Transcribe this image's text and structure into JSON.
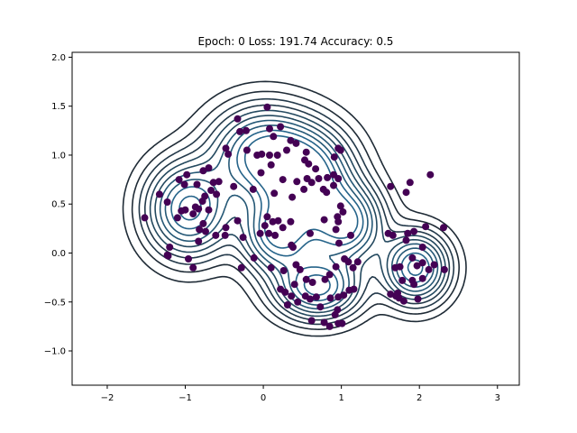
{
  "chart_data": {
    "type": "scatter",
    "title": "Epoch: 0 Loss: 191.74 Accuracy:  0.5",
    "xlabel": "",
    "ylabel": "",
    "xlim": [
      -2.45,
      3.28
    ],
    "ylim": [
      -1.35,
      2.05
    ],
    "grid": false,
    "xticks": [
      -2,
      -1,
      0,
      1,
      2,
      3
    ],
    "xtick_labels": [
      "−2",
      "−1",
      "0",
      "1",
      "2",
      "3"
    ],
    "yticks": [
      -1.0,
      -0.5,
      0.0,
      0.5,
      1.0,
      1.5,
      2.0
    ],
    "ytick_labels": [
      "−1.0",
      "−0.5",
      "0.0",
      "0.5",
      "1.0",
      "1.5",
      "2.0"
    ],
    "point_color": "#440154",
    "contour_colors": [
      "#1f2b36",
      "#23394a",
      "#24495f",
      "#255876",
      "#26648a"
    ],
    "clusters": [
      {
        "cx": 0.0,
        "cy": 1.0,
        "sx": 0.42,
        "sy": 0.3
      },
      {
        "cx": 0.58,
        "cy": 0.78,
        "sx": 0.36,
        "sy": 0.3
      },
      {
        "cx": -0.95,
        "cy": 0.45,
        "sx": 0.34,
        "sy": 0.3
      },
      {
        "cx": 0.2,
        "cy": 0.2,
        "sx": 0.3,
        "sy": 0.25
      },
      {
        "cx": 0.7,
        "cy": -0.35,
        "sx": 0.34,
        "sy": 0.2
      },
      {
        "cx": 1.95,
        "cy": -0.15,
        "sx": 0.26,
        "sy": 0.22
      },
      {
        "cx": 1.05,
        "cy": 0.3,
        "sx": 0.3,
        "sy": 0.25
      }
    ],
    "points": [
      [
        0.05,
        1.49
      ],
      [
        -0.33,
        1.37
      ],
      [
        0.08,
        1.27
      ],
      [
        0.22,
        1.29
      ],
      [
        -0.22,
        1.25
      ],
      [
        -0.3,
        1.24
      ],
      [
        0.13,
        1.19
      ],
      [
        0.35,
        1.15
      ],
      [
        0.42,
        1.12
      ],
      [
        -0.48,
        1.07
      ],
      [
        -0.45,
        1.01
      ],
      [
        -0.21,
        1.05
      ],
      [
        -0.08,
        1.0
      ],
      [
        -0.02,
        1.01
      ],
      [
        0.08,
        1.0
      ],
      [
        0.18,
        1.0
      ],
      [
        0.3,
        1.05
      ],
      [
        0.55,
        1.03
      ],
      [
        0.96,
        1.07
      ],
      [
        0.99,
        1.05
      ],
      [
        0.91,
        0.98
      ],
      [
        0.53,
        0.95
      ],
      [
        0.58,
        0.91
      ],
      [
        0.67,
        0.86
      ],
      [
        0.1,
        0.9
      ],
      [
        -0.03,
        0.82
      ],
      [
        0.25,
        0.75
      ],
      [
        0.43,
        0.73
      ],
      [
        0.56,
        0.76
      ],
      [
        0.71,
        0.76
      ],
      [
        0.82,
        0.77
      ],
      [
        0.9,
        0.8
      ],
      [
        0.96,
        0.76
      ],
      [
        0.9,
        0.69
      ],
      [
        0.81,
        0.62
      ],
      [
        0.77,
        0.65
      ],
      [
        0.52,
        0.65
      ],
      [
        0.62,
        0.72
      ],
      [
        0.37,
        0.57
      ],
      [
        0.14,
        0.61
      ],
      [
        -0.13,
        0.65
      ],
      [
        -0.38,
        0.68
      ],
      [
        -0.57,
        0.73
      ],
      [
        -0.64,
        0.72
      ],
      [
        -0.77,
        0.84
      ],
      [
        -0.7,
        0.87
      ],
      [
        -0.98,
        0.8
      ],
      [
        -1.08,
        0.75
      ],
      [
        -1.01,
        0.7
      ],
      [
        -0.85,
        0.7
      ],
      [
        -0.67,
        0.64
      ],
      [
        -0.6,
        0.6
      ],
      [
        -0.75,
        0.58
      ],
      [
        -0.78,
        0.53
      ],
      [
        -1.33,
        0.6
      ],
      [
        -1.23,
        0.52
      ],
      [
        -0.87,
        0.47
      ],
      [
        -0.83,
        0.45
      ],
      [
        -0.7,
        0.44
      ],
      [
        -0.9,
        0.4
      ],
      [
        -1.0,
        0.44
      ],
      [
        -1.05,
        0.43
      ],
      [
        -1.1,
        0.36
      ],
      [
        -1.52,
        0.36
      ],
      [
        -0.77,
        0.3
      ],
      [
        -0.74,
        0.22
      ],
      [
        -0.82,
        0.24
      ],
      [
        -0.61,
        0.18
      ],
      [
        -0.49,
        0.18
      ],
      [
        -0.83,
        0.12
      ],
      [
        -0.48,
        0.26
      ],
      [
        -0.33,
        0.33
      ],
      [
        0.05,
        0.37
      ],
      [
        0.12,
        0.32
      ],
      [
        0.19,
        0.33
      ],
      [
        0.25,
        0.26
      ],
      [
        0.35,
        0.32
      ],
      [
        0.02,
        0.28
      ],
      [
        0.07,
        0.2
      ],
      [
        0.15,
        0.18
      ],
      [
        -0.04,
        0.2
      ],
      [
        0.38,
        0.06
      ],
      [
        0.36,
        0.08
      ],
      [
        -0.26,
        0.16
      ],
      [
        0.78,
        0.34
      ],
      [
        0.95,
        0.37
      ],
      [
        0.99,
        0.48
      ],
      [
        1.02,
        0.42
      ],
      [
        0.96,
        0.32
      ],
      [
        0.93,
        0.24
      ],
      [
        1.12,
        0.18
      ],
      [
        0.97,
        0.1
      ],
      [
        0.6,
        0.2
      ],
      [
        -1.2,
        0.06
      ],
      [
        -1.22,
        -0.03
      ],
      [
        -1.23,
        -0.02
      ],
      [
        -0.96,
        -0.06
      ],
      [
        -0.28,
        -0.15
      ],
      [
        -0.9,
        -0.15
      ],
      [
        -0.12,
        -0.05
      ],
      [
        0.1,
        -0.15
      ],
      [
        0.42,
        -0.12
      ],
      [
        0.47,
        -0.17
      ],
      [
        0.26,
        -0.18
      ],
      [
        0.55,
        -0.27
      ],
      [
        0.63,
        -0.3
      ],
      [
        0.4,
        -0.32
      ],
      [
        0.79,
        -0.27
      ],
      [
        0.85,
        -0.22
      ],
      [
        0.93,
        -0.14
      ],
      [
        1.04,
        -0.06
      ],
      [
        1.09,
        -0.09
      ],
      [
        1.21,
        -0.09
      ],
      [
        1.15,
        -0.15
      ],
      [
        0.22,
        -0.37
      ],
      [
        0.28,
        -0.4
      ],
      [
        0.36,
        -0.44
      ],
      [
        0.54,
        -0.44
      ],
      [
        0.6,
        -0.47
      ],
      [
        0.68,
        -0.45
      ],
      [
        0.86,
        -0.46
      ],
      [
        0.96,
        -0.45
      ],
      [
        1.03,
        -0.43
      ],
      [
        1.1,
        -0.38
      ],
      [
        1.16,
        -0.37
      ],
      [
        0.73,
        -0.55
      ],
      [
        0.95,
        -0.58
      ],
      [
        0.92,
        -0.63
      ],
      [
        0.62,
        -0.69
      ],
      [
        0.78,
        -0.71
      ],
      [
        0.85,
        -0.75
      ],
      [
        0.96,
        -0.72
      ],
      [
        1.01,
        -0.72
      ],
      [
        0.44,
        -0.5
      ],
      [
        0.31,
        -0.53
      ],
      [
        1.63,
        0.68
      ],
      [
        1.83,
        0.62
      ],
      [
        1.88,
        0.72
      ],
      [
        2.14,
        0.8
      ],
      [
        1.6,
        0.2
      ],
      [
        1.66,
        0.18
      ],
      [
        1.85,
        0.2
      ],
      [
        1.93,
        0.22
      ],
      [
        2.08,
        0.27
      ],
      [
        2.31,
        0.26
      ],
      [
        1.83,
        0.13
      ],
      [
        2.04,
        0.06
      ],
      [
        1.91,
        -0.05
      ],
      [
        1.97,
        -0.13
      ],
      [
        2.12,
        -0.17
      ],
      [
        2.19,
        -0.12
      ],
      [
        2.32,
        -0.17
      ],
      [
        2.04,
        -0.1
      ],
      [
        1.75,
        -0.14
      ],
      [
        1.69,
        -0.15
      ],
      [
        1.78,
        -0.28
      ],
      [
        1.91,
        -0.28
      ],
      [
        2.04,
        -0.26
      ],
      [
        1.93,
        -0.32
      ],
      [
        1.72,
        -0.41
      ],
      [
        1.63,
        -0.42
      ],
      [
        1.7,
        -0.44
      ],
      [
        1.98,
        -0.47
      ],
      [
        1.8,
        -0.49
      ],
      [
        1.74,
        -0.46
      ]
    ]
  }
}
